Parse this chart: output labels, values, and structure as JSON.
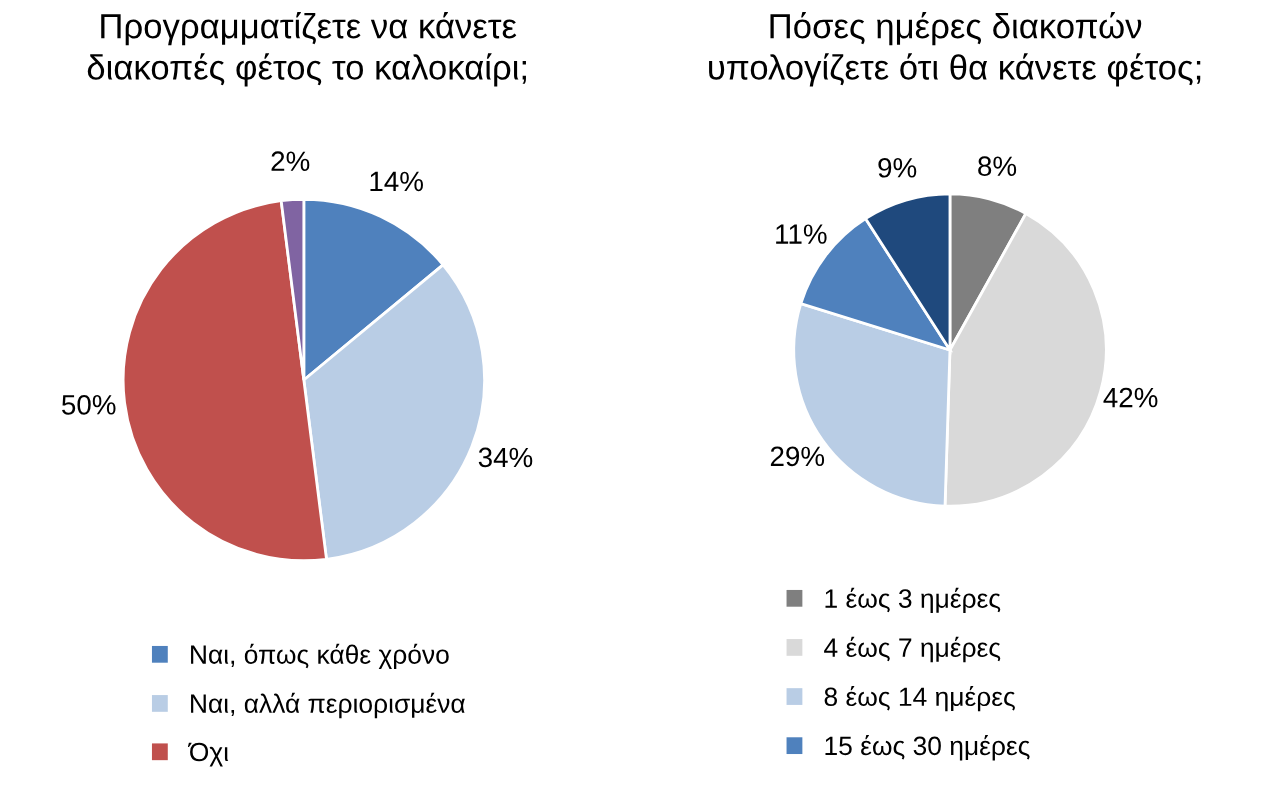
{
  "chart_data": [
    {
      "type": "pie",
      "title": "Προγραμματίζετε να κάνετε\nδιακοπές φέτος το καλοκαίρι;",
      "categories": [
        "Ναι, όπως κάθε χρόνο",
        "Ναι, αλλά περιορισμένα",
        "Όχι",
        null
      ],
      "values": [
        14,
        34,
        50,
        2
      ],
      "colors": [
        "#4f81bd",
        "#b9cde5",
        "#c0504d",
        "#8064a2"
      ],
      "value_labels": [
        "14%",
        "34%",
        "50%",
        "2%"
      ],
      "legend": "bottom"
    },
    {
      "type": "pie",
      "title": "Πόσες ημέρες διακοπών\nυπολογίζετε ότι θα κάνετε φέτος;",
      "categories": [
        "1 έως 3 ημέρες",
        "4 έως 7 ημέρες",
        "8 έως 14 ημέρες",
        "15 έως 30 ημέρες",
        null
      ],
      "values": [
        8,
        42,
        29,
        11,
        9
      ],
      "colors": [
        "#7f7f7f",
        "#d9d9d9",
        "#b9cde5",
        "#4f81bd",
        "#1f497d"
      ],
      "value_labels": [
        "8%",
        "42%",
        "29%",
        "11%",
        "9%"
      ],
      "legend": "bottom"
    }
  ]
}
